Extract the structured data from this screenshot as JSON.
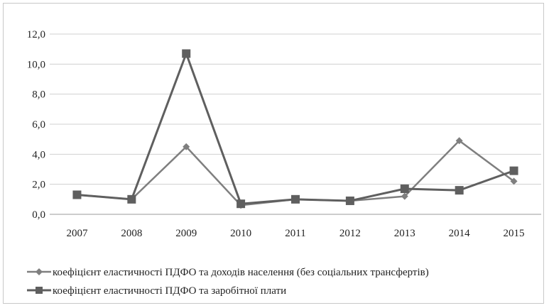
{
  "chart_data": {
    "type": "line",
    "categories": [
      "2007",
      "2008",
      "2009",
      "2010",
      "2011",
      "2012",
      "2013",
      "2014",
      "2015"
    ],
    "ylim": [
      0,
      12
    ],
    "yticks": [
      "0,0",
      "2,0",
      "4,0",
      "6,0",
      "8,0",
      "10,0",
      "12,0"
    ],
    "grid": true,
    "legend_position": "bottom",
    "series": [
      {
        "name": "коефіцієнт еластичності ПДФО та доходів населення (без соціальних трансфертів)",
        "marker": "diamond",
        "color": "#7f7f7f",
        "values": [
          1.3,
          1.0,
          4.5,
          0.6,
          1.0,
          0.9,
          1.2,
          4.9,
          2.2
        ]
      },
      {
        "name": "коефіцієнт еластичності ПДФО та заробітної плати",
        "marker": "square",
        "color": "#5f5f5f",
        "values": [
          1.3,
          1.0,
          10.7,
          0.7,
          1.0,
          0.9,
          1.7,
          1.6,
          2.9
        ]
      }
    ]
  }
}
